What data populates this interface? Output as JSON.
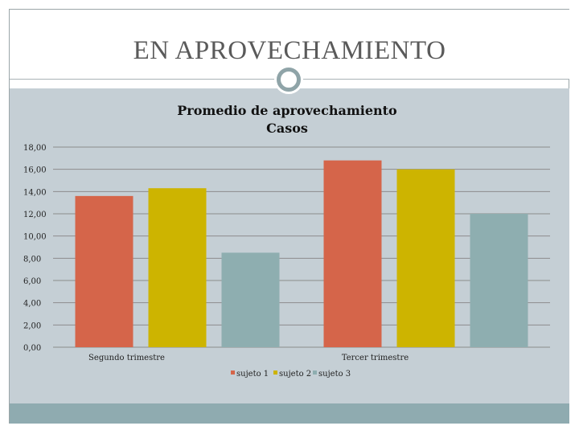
{
  "slide": {
    "title": "EN APROVECHAMIENTO"
  },
  "colors": {
    "background": "#c5cfd5",
    "footer": "#8fabb0",
    "ornament": "#8fa4a8"
  },
  "chart_data": {
    "type": "bar",
    "title": [
      "Promedio de aprovechamiento",
      "Casos"
    ],
    "xlabel": "",
    "ylabel": "",
    "categories": [
      "Segundo trimestre",
      "Tercer trimestre"
    ],
    "series": [
      {
        "name": "sujeto 1",
        "color": "#d5654a",
        "values": [
          13.6,
          16.8
        ]
      },
      {
        "name": "sujeto 2",
        "color": "#cdb400",
        "values": [
          14.3,
          16.0
        ]
      },
      {
        "name": "sujeto 3",
        "color": "#8eaeb0",
        "values": [
          8.5,
          12.0
        ]
      }
    ],
    "ylim": [
      0,
      18
    ],
    "yticks": [
      0,
      2,
      4,
      6,
      8,
      10,
      12,
      14,
      16,
      18
    ],
    "ytick_labels": [
      "0,00",
      "2,00",
      "4,00",
      "6,00",
      "8,00",
      "10,00",
      "12,00",
      "14,00",
      "16,00",
      "18,00"
    ],
    "grid": true,
    "legend_position": "bottom"
  }
}
